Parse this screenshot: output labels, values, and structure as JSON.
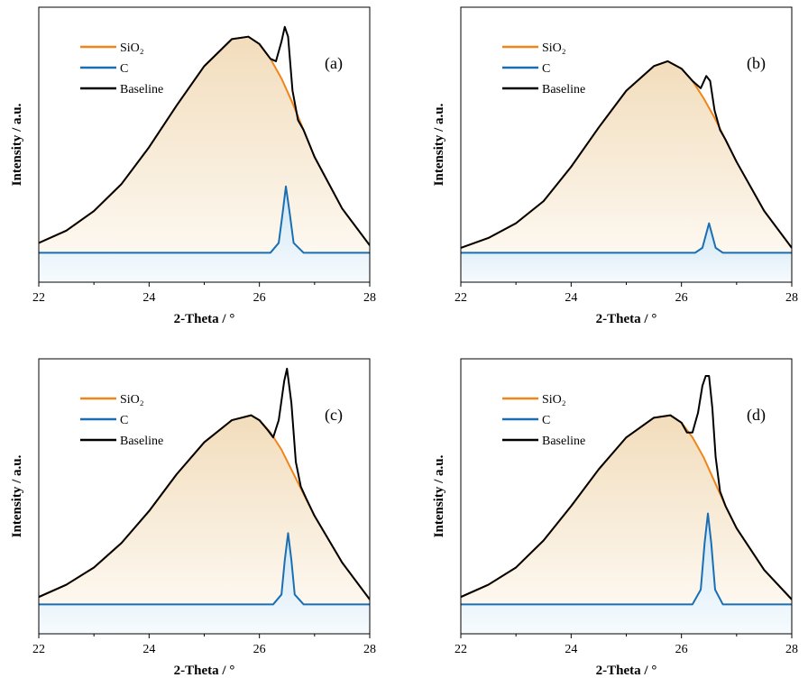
{
  "colors": {
    "sio2": "#f08519",
    "c": "#1a6fb4",
    "baseline": "#000000",
    "fill_sio2": "#f5e2c6",
    "fill_c": "#dcedf7"
  },
  "legend": {
    "items": [
      "SiO₂",
      "C",
      "Baseline"
    ]
  },
  "axes": {
    "xlabel": "2-Theta / °",
    "ylabel": "Intensity / a.u.",
    "xticks": [
      "22",
      "24",
      "26",
      "28"
    ],
    "xlim": [
      22,
      28
    ]
  },
  "chart_data": [
    {
      "type": "line",
      "panel_label": "(a)",
      "xlim": [
        22,
        28
      ],
      "ylim": [
        -0.12,
        1.0
      ],
      "series": [
        {
          "name": "SiO₂",
          "x": [
            22.0,
            22.5,
            23.0,
            23.5,
            24.0,
            24.5,
            25.0,
            25.5,
            25.8,
            26.0,
            26.2,
            26.4,
            26.6,
            26.8,
            27.0,
            27.5,
            28.0
          ],
          "y": [
            0.04,
            0.09,
            0.17,
            0.28,
            0.43,
            0.6,
            0.76,
            0.87,
            0.88,
            0.85,
            0.79,
            0.71,
            0.61,
            0.5,
            0.39,
            0.18,
            0.03
          ]
        },
        {
          "name": "C",
          "x": [
            22.0,
            26.2,
            26.35,
            26.42,
            26.48,
            26.55,
            26.62,
            26.8,
            28.0
          ],
          "y": [
            0.0,
            0.0,
            0.04,
            0.16,
            0.27,
            0.16,
            0.04,
            0.0,
            0.0
          ]
        },
        {
          "name": "Baseline",
          "x": [
            22.0,
            22.5,
            23.0,
            23.5,
            24.0,
            24.5,
            25.0,
            25.5,
            25.8,
            26.0,
            26.2,
            26.3,
            26.4,
            26.46,
            26.52,
            26.6,
            26.7,
            26.8,
            27.0,
            27.5,
            28.0
          ],
          "y": [
            0.04,
            0.09,
            0.17,
            0.28,
            0.43,
            0.6,
            0.76,
            0.87,
            0.88,
            0.85,
            0.79,
            0.78,
            0.86,
            0.92,
            0.88,
            0.66,
            0.54,
            0.5,
            0.39,
            0.18,
            0.03
          ]
        }
      ]
    },
    {
      "type": "line",
      "panel_label": "(b)",
      "xlim": [
        22,
        28
      ],
      "ylim": [
        -0.12,
        1.0
      ],
      "series": [
        {
          "name": "SiO₂",
          "x": [
            22.0,
            22.5,
            23.0,
            23.5,
            24.0,
            24.5,
            25.0,
            25.5,
            25.75,
            26.0,
            26.2,
            26.4,
            26.6,
            26.8,
            27.0,
            27.5,
            28.0
          ],
          "y": [
            0.02,
            0.06,
            0.12,
            0.21,
            0.35,
            0.51,
            0.66,
            0.76,
            0.78,
            0.75,
            0.7,
            0.63,
            0.55,
            0.46,
            0.37,
            0.17,
            0.02
          ]
        },
        {
          "name": "C",
          "x": [
            22.0,
            26.25,
            26.38,
            26.44,
            26.5,
            26.56,
            26.62,
            26.75,
            28.0
          ],
          "y": [
            0.0,
            0.0,
            0.02,
            0.07,
            0.12,
            0.07,
            0.02,
            0.0,
            0.0
          ]
        },
        {
          "name": "Baseline",
          "x": [
            22.0,
            22.5,
            23.0,
            23.5,
            24.0,
            24.5,
            25.0,
            25.5,
            25.75,
            26.0,
            26.2,
            26.35,
            26.45,
            26.52,
            26.6,
            26.7,
            26.8,
            27.0,
            27.5,
            28.0
          ],
          "y": [
            0.02,
            0.06,
            0.12,
            0.21,
            0.35,
            0.51,
            0.66,
            0.76,
            0.78,
            0.75,
            0.7,
            0.67,
            0.72,
            0.7,
            0.58,
            0.5,
            0.46,
            0.37,
            0.17,
            0.02
          ]
        }
      ]
    },
    {
      "type": "line",
      "panel_label": "(c)",
      "xlim": [
        22,
        28
      ],
      "ylim": [
        -0.12,
        1.0
      ],
      "series": [
        {
          "name": "SiO₂",
          "x": [
            22.0,
            22.5,
            23.0,
            23.5,
            24.0,
            24.5,
            25.0,
            25.5,
            25.85,
            26.0,
            26.2,
            26.4,
            26.6,
            26.8,
            27.0,
            27.5,
            28.0
          ],
          "y": [
            0.03,
            0.08,
            0.15,
            0.25,
            0.38,
            0.53,
            0.66,
            0.75,
            0.77,
            0.75,
            0.7,
            0.63,
            0.54,
            0.45,
            0.36,
            0.17,
            0.02
          ]
        },
        {
          "name": "C",
          "x": [
            22.0,
            26.25,
            26.4,
            26.46,
            26.52,
            26.58,
            26.64,
            26.8,
            28.0
          ],
          "y": [
            0.0,
            0.0,
            0.04,
            0.18,
            0.29,
            0.18,
            0.04,
            0.0,
            0.0
          ]
        },
        {
          "name": "Baseline",
          "x": [
            22.0,
            22.5,
            23.0,
            23.5,
            24.0,
            24.5,
            25.0,
            25.5,
            25.85,
            26.0,
            26.15,
            26.25,
            26.35,
            26.45,
            26.5,
            26.58,
            26.66,
            26.75,
            26.85,
            27.0,
            27.5,
            28.0
          ],
          "y": [
            0.03,
            0.08,
            0.15,
            0.25,
            0.38,
            0.53,
            0.66,
            0.75,
            0.77,
            0.75,
            0.71,
            0.68,
            0.75,
            0.91,
            0.96,
            0.82,
            0.58,
            0.48,
            0.43,
            0.36,
            0.17,
            0.02
          ]
        }
      ]
    },
    {
      "type": "line",
      "panel_label": "(d)",
      "xlim": [
        22,
        28
      ],
      "ylim": [
        -0.12,
        1.0
      ],
      "series": [
        {
          "name": "SiO₂",
          "x": [
            22.0,
            22.5,
            23.0,
            23.5,
            24.0,
            24.5,
            25.0,
            25.5,
            25.8,
            26.0,
            26.2,
            26.4,
            26.6,
            26.8,
            27.0,
            27.5,
            28.0
          ],
          "y": [
            0.03,
            0.08,
            0.15,
            0.26,
            0.4,
            0.55,
            0.68,
            0.76,
            0.77,
            0.74,
            0.68,
            0.6,
            0.5,
            0.4,
            0.31,
            0.14,
            0.02
          ]
        },
        {
          "name": "C",
          "x": [
            22.0,
            26.2,
            26.35,
            26.42,
            26.48,
            26.54,
            26.61,
            26.75,
            28.0
          ],
          "y": [
            0.0,
            0.0,
            0.06,
            0.25,
            0.37,
            0.25,
            0.06,
            0.0,
            0.0
          ]
        },
        {
          "name": "Baseline",
          "x": [
            22.0,
            22.5,
            23.0,
            23.5,
            24.0,
            24.5,
            25.0,
            25.5,
            25.8,
            26.0,
            26.1,
            26.2,
            26.3,
            26.38,
            26.44,
            26.5,
            26.56,
            26.62,
            26.7,
            26.8,
            27.0,
            27.5,
            28.0
          ],
          "y": [
            0.03,
            0.08,
            0.15,
            0.26,
            0.4,
            0.55,
            0.68,
            0.76,
            0.77,
            0.74,
            0.7,
            0.7,
            0.78,
            0.89,
            0.93,
            0.93,
            0.8,
            0.6,
            0.46,
            0.4,
            0.31,
            0.14,
            0.02
          ]
        }
      ]
    }
  ]
}
